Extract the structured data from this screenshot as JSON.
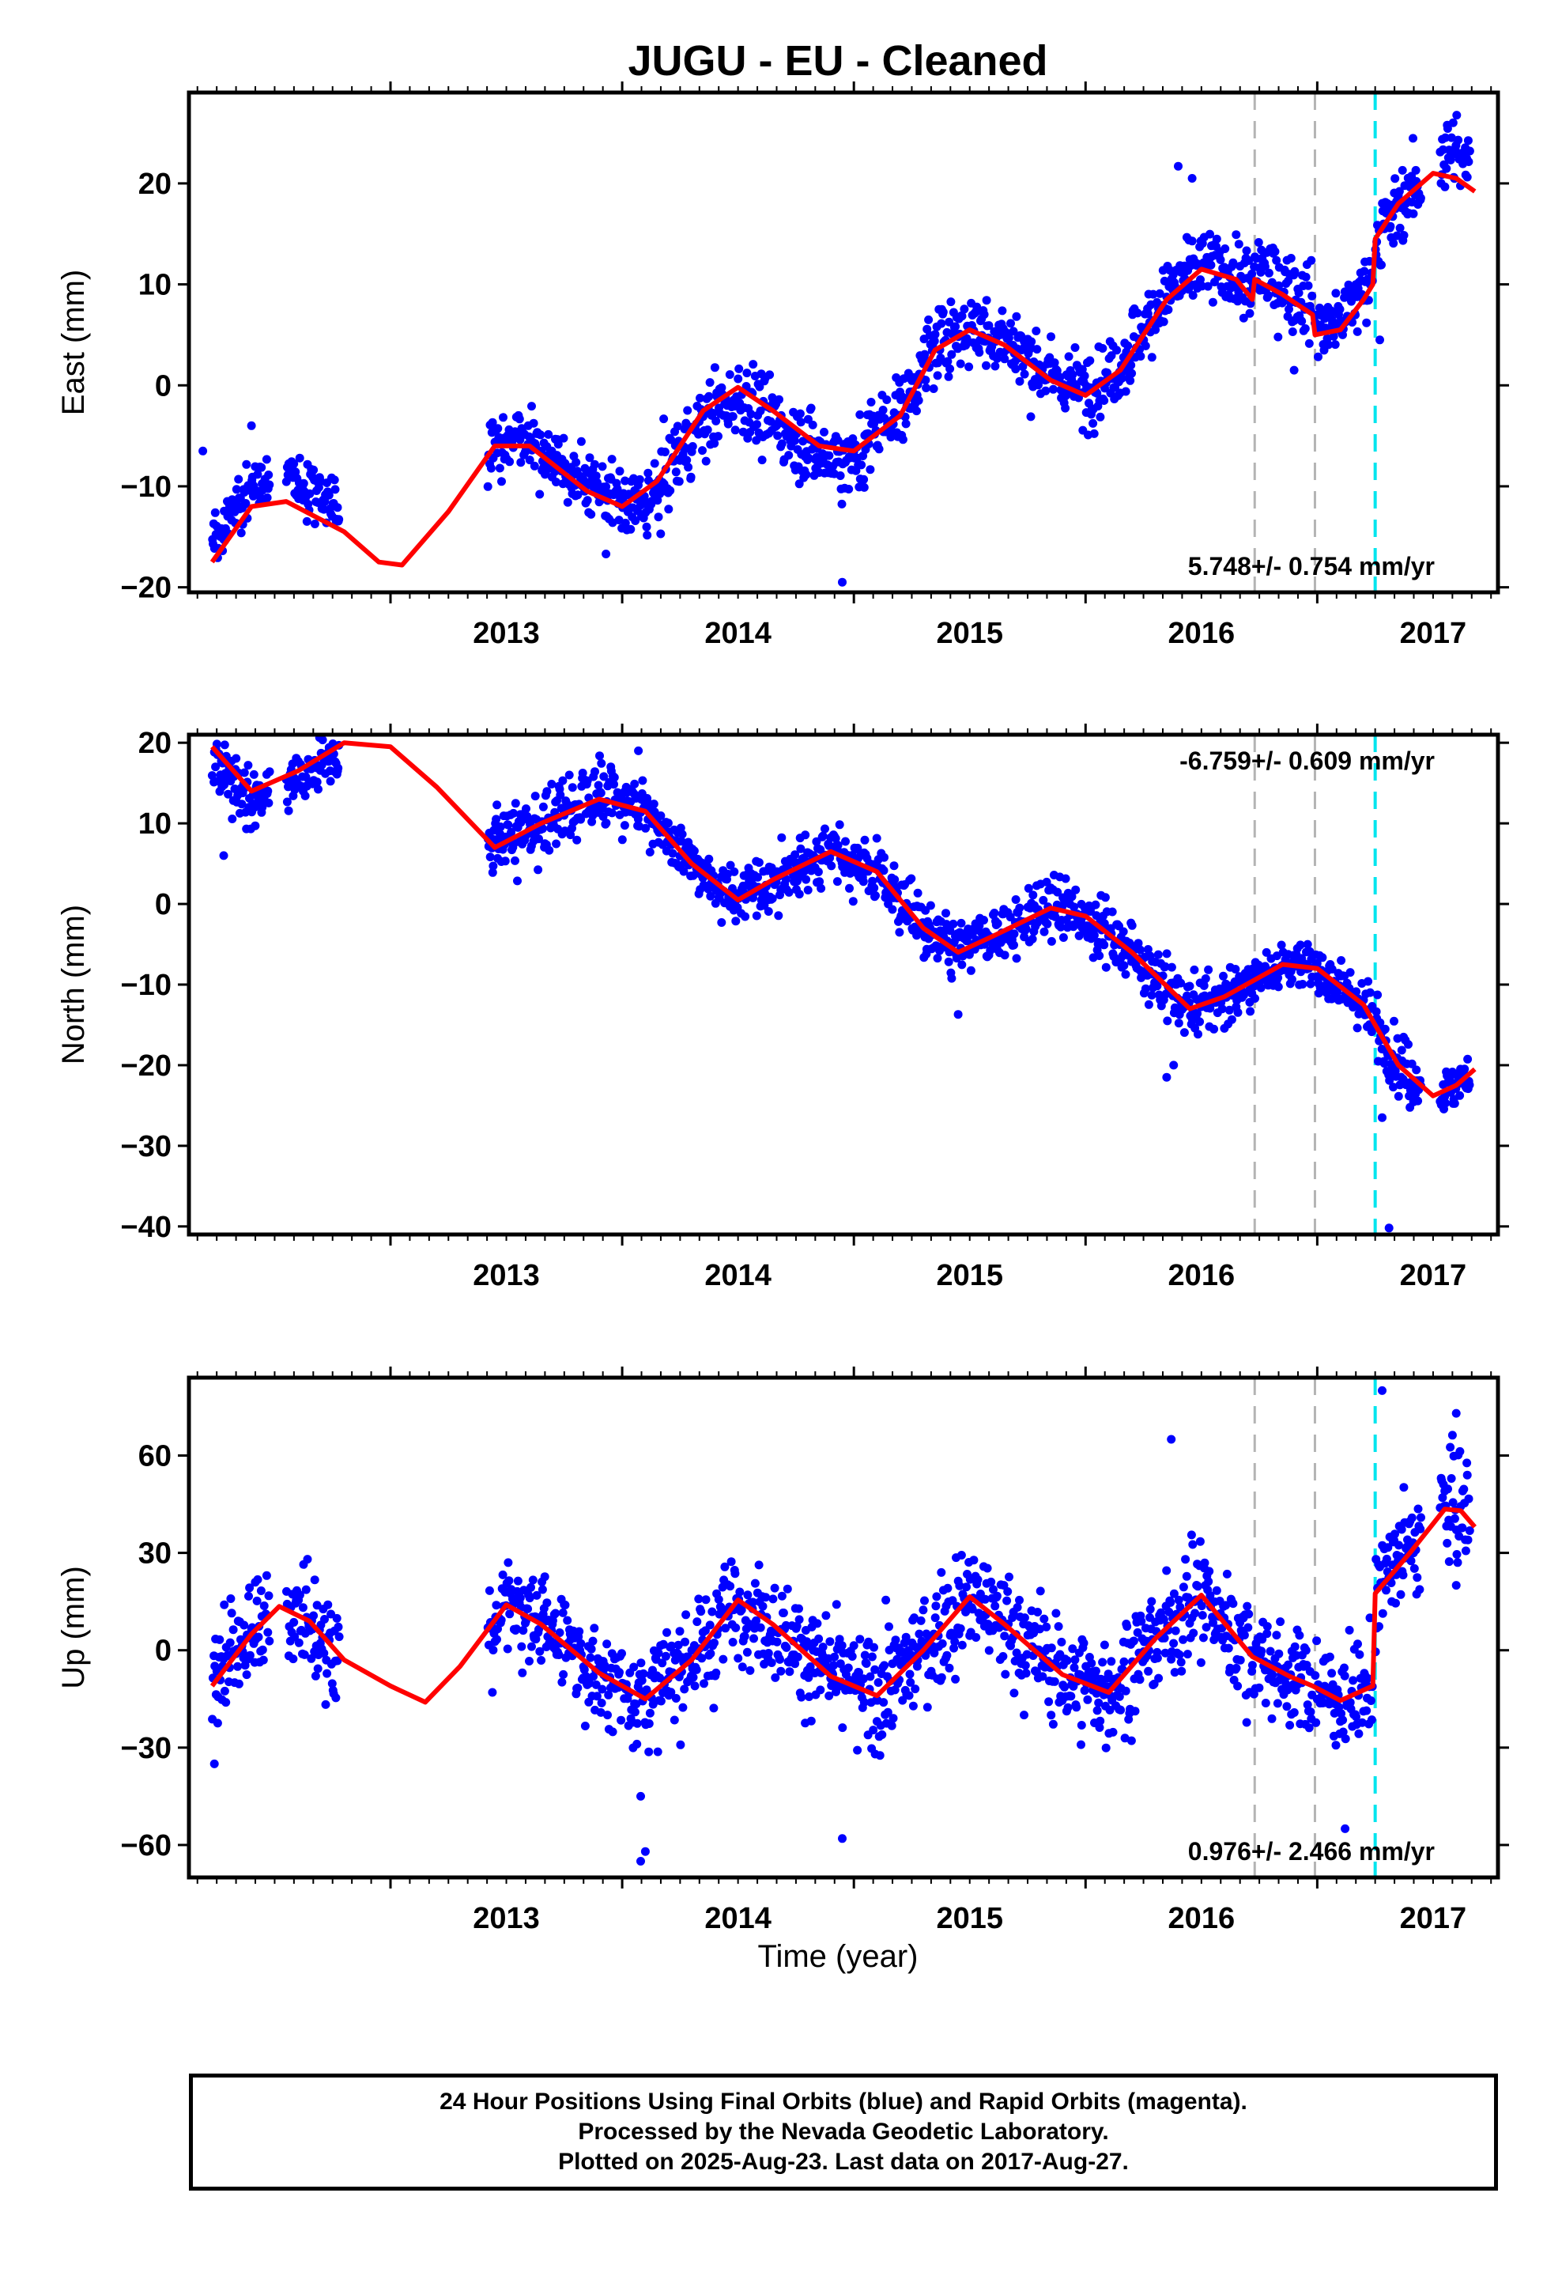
{
  "title": "JUGU  - EU - Cleaned",
  "xlabel": "Time (year)",
  "footer": {
    "line1": "24 Hour Positions Using Final Orbits (blue) and Rapid Orbits (magenta).",
    "line2": "Processed by the Nevada Geodetic Laboratory.",
    "line3": "Plotted on 2025-Aug-23. Last data on 2017-Aug-27."
  },
  "colors": {
    "data": "#0000ff",
    "model": "#ff0000",
    "steps_gray": "#b4b4b4",
    "step_cyan": "#00e5ee",
    "axes": "#000000"
  },
  "chart_data": [
    {
      "type": "scatter",
      "component": "east",
      "ylabel": "East (mm)",
      "xlim": [
        2012.13,
        2017.78
      ],
      "ylim": [
        -20.5,
        29
      ],
      "xticks": [
        2013,
        2014,
        2015,
        2016,
        2017
      ],
      "yticks": [
        -20,
        -10,
        0,
        10,
        20
      ],
      "rate_label": "5.748+/- 0.754 mm/yr",
      "rate_position": "bottom-right",
      "vertical_lines": [
        {
          "x": 2016.73,
          "color": "gray",
          "style": "dashed"
        },
        {
          "x": 2016.99,
          "color": "gray",
          "style": "dashed"
        },
        {
          "x": 2017.25,
          "color": "cyan",
          "style": "dashed"
        }
      ],
      "model_curve": [
        [
          2012.23,
          -17.5
        ],
        [
          2012.4,
          -12.0
        ],
        [
          2012.55,
          -11.5
        ],
        [
          2012.8,
          -14.5
        ],
        [
          2012.95,
          -17.5
        ],
        [
          2013.05,
          -17.8
        ],
        [
          2013.25,
          -12.5
        ],
        [
          2013.45,
          -6.0
        ],
        [
          2013.6,
          -6.0
        ],
        [
          2013.85,
          -10.5
        ],
        [
          2014.0,
          -12.0
        ],
        [
          2014.15,
          -9.5
        ],
        [
          2014.35,
          -2.5
        ],
        [
          2014.5,
          -0.2
        ],
        [
          2014.65,
          -2.5
        ],
        [
          2014.85,
          -6.0
        ],
        [
          2015.0,
          -6.5
        ],
        [
          2015.2,
          -3.0
        ],
        [
          2015.35,
          3.5
        ],
        [
          2015.5,
          5.5
        ],
        [
          2015.65,
          4.0
        ],
        [
          2015.85,
          0.5
        ],
        [
          2016.0,
          -1.0
        ],
        [
          2016.15,
          1.5
        ],
        [
          2016.35,
          8.5
        ],
        [
          2016.5,
          11.5
        ],
        [
          2016.65,
          10.5
        ],
        [
          2016.72,
          8.5
        ],
        [
          2016.73,
          10.5
        ],
        [
          2016.85,
          9.0
        ],
        [
          2016.98,
          7.0
        ],
        [
          2016.99,
          5.0
        ],
        [
          2017.1,
          5.5
        ],
        [
          2017.2,
          8.5
        ],
        [
          2017.24,
          10.0
        ],
        [
          2017.25,
          14.5
        ],
        [
          2017.35,
          18.0
        ],
        [
          2017.5,
          21.0
        ],
        [
          2017.6,
          20.5
        ],
        [
          2017.68,
          19.2
        ]
      ],
      "data_segments": [
        {
          "x_range": [
            2012.23,
            2012.48
          ],
          "offset": 2.0,
          "spread": 1.3
        },
        {
          "x_range": [
            2012.55,
            2012.78
          ],
          "offset": 2.5,
          "spread": 1.3
        },
        {
          "x_range": [
            2013.42,
            2014.02
          ],
          "offset": 0.5,
          "spread": 1.5
        },
        {
          "x_range": [
            2014.02,
            2015.05
          ],
          "offset": -1.0,
          "spread": 1.8
        },
        {
          "x_range": [
            2015.05,
            2016.72
          ],
          "offset": 0.5,
          "spread": 1.8
        },
        {
          "x_range": [
            2016.72,
            2016.98
          ],
          "offset": 1.0,
          "spread": 1.8
        },
        {
          "x_range": [
            2016.99,
            2017.24
          ],
          "offset": 1.0,
          "spread": 1.6
        },
        {
          "x_range": [
            2017.25,
            2017.45
          ],
          "offset": 0.0,
          "spread": 1.8
        },
        {
          "x_range": [
            2017.53,
            2017.66
          ],
          "offset": 2.0,
          "spread": 2.0
        }
      ],
      "outliers": [
        [
          2012.19,
          -6.5
        ],
        [
          2012.4,
          -4.0
        ],
        [
          2013.93,
          -16.7
        ],
        [
          2014.95,
          -19.5
        ],
        [
          2016.4,
          21.7
        ],
        [
          2016.46,
          20.5
        ],
        [
          2016.9,
          1.5
        ],
        [
          2017.27,
          4.5
        ]
      ]
    },
    {
      "type": "scatter",
      "component": "north",
      "ylabel": "North (mm)",
      "xlim": [
        2012.13,
        2017.78
      ],
      "ylim": [
        -41,
        21
      ],
      "xticks": [
        2013,
        2014,
        2015,
        2016,
        2017
      ],
      "yticks": [
        -40,
        -30,
        -20,
        -10,
        0,
        10,
        20
      ],
      "rate_label": "-6.759+/- 0.609 mm/yr",
      "rate_position": "top-right",
      "vertical_lines": [
        {
          "x": 2016.73,
          "color": "gray",
          "style": "dashed"
        },
        {
          "x": 2016.99,
          "color": "gray",
          "style": "dashed"
        },
        {
          "x": 2017.25,
          "color": "cyan",
          "style": "dashed"
        }
      ],
      "model_curve": [
        [
          2012.23,
          19.5
        ],
        [
          2012.4,
          14.0
        ],
        [
          2012.6,
          16.5
        ],
        [
          2012.8,
          20.0
        ],
        [
          2013.0,
          19.5
        ],
        [
          2013.2,
          14.5
        ],
        [
          2013.45,
          7.0
        ],
        [
          2013.65,
          10.0
        ],
        [
          2013.9,
          13.0
        ],
        [
          2014.1,
          11.5
        ],
        [
          2014.3,
          5.0
        ],
        [
          2014.5,
          0.5
        ],
        [
          2014.65,
          3.0
        ],
        [
          2014.9,
          6.5
        ],
        [
          2015.1,
          4.0
        ],
        [
          2015.3,
          -3.0
        ],
        [
          2015.45,
          -6.0
        ],
        [
          2015.6,
          -4.0
        ],
        [
          2015.85,
          -0.5
        ],
        [
          2016.0,
          -1.5
        ],
        [
          2016.2,
          -6.0
        ],
        [
          2016.45,
          -13.0
        ],
        [
          2016.6,
          -11.5
        ],
        [
          2016.85,
          -7.5
        ],
        [
          2017.0,
          -8.0
        ],
        [
          2017.2,
          -12.5
        ],
        [
          2017.35,
          -20.0
        ],
        [
          2017.5,
          -23.8
        ],
        [
          2017.6,
          -22.5
        ],
        [
          2017.68,
          -20.5
        ]
      ],
      "data_segments": [
        {
          "x_range": [
            2012.23,
            2012.48
          ],
          "offset": -1.5,
          "spread": 2.0
        },
        {
          "x_range": [
            2012.55,
            2012.78
          ],
          "offset": -1.0,
          "spread": 1.5
        },
        {
          "x_range": [
            2013.42,
            2014.02
          ],
          "offset": 0.5,
          "spread": 2.0
        },
        {
          "x_range": [
            2014.02,
            2015.05
          ],
          "offset": 0.0,
          "spread": 1.7
        },
        {
          "x_range": [
            2015.05,
            2016.72
          ],
          "offset": 0.0,
          "spread": 1.8
        },
        {
          "x_range": [
            2016.72,
            2016.98
          ],
          "offset": 0.0,
          "spread": 1.3
        },
        {
          "x_range": [
            2016.99,
            2017.24
          ],
          "offset": 0.0,
          "spread": 1.5
        },
        {
          "x_range": [
            2017.25,
            2017.45
          ],
          "offset": 0.0,
          "spread": 1.8
        },
        {
          "x_range": [
            2017.53,
            2017.66
          ],
          "offset": 0.0,
          "spread": 1.5
        }
      ],
      "outliers": [
        [
          2012.28,
          6.0
        ],
        [
          2014.07,
          19.0
        ],
        [
          2015.45,
          -13.7
        ],
        [
          2016.35,
          -21.5
        ],
        [
          2016.38,
          -20.0
        ],
        [
          2017.31,
          -40.2
        ],
        [
          2017.28,
          -26.5
        ]
      ]
    },
    {
      "type": "scatter",
      "component": "up",
      "ylabel": "Up (mm)",
      "xlabel": "Time (year)",
      "xlim": [
        2012.13,
        2017.78
      ],
      "ylim": [
        -70,
        84
      ],
      "xticks": [
        2013,
        2014,
        2015,
        2016,
        2017
      ],
      "yticks": [
        -60,
        -30,
        0,
        30,
        60
      ],
      "rate_label": "0.976+/- 2.466 mm/yr",
      "rate_position": "bottom-right",
      "vertical_lines": [
        {
          "x": 2016.73,
          "color": "gray",
          "style": "dashed"
        },
        {
          "x": 2016.99,
          "color": "gray",
          "style": "dashed"
        },
        {
          "x": 2017.25,
          "color": "cyan",
          "style": "dashed"
        }
      ],
      "model_curve": [
        [
          2012.23,
          -11.0
        ],
        [
          2012.4,
          5.0
        ],
        [
          2012.52,
          13.5
        ],
        [
          2012.65,
          9.0
        ],
        [
          2012.8,
          -3.0
        ],
        [
          2013.0,
          -11.0
        ],
        [
          2013.15,
          -16.0
        ],
        [
          2013.3,
          -5.0
        ],
        [
          2013.5,
          14.0
        ],
        [
          2013.65,
          8.0
        ],
        [
          2013.9,
          -7.0
        ],
        [
          2014.1,
          -15.0
        ],
        [
          2014.3,
          -3.0
        ],
        [
          2014.5,
          15.5
        ],
        [
          2014.65,
          8.0
        ],
        [
          2014.9,
          -8.0
        ],
        [
          2015.1,
          -14.0
        ],
        [
          2015.3,
          0.0
        ],
        [
          2015.5,
          16.5
        ],
        [
          2015.65,
          8.0
        ],
        [
          2015.9,
          -7.5
        ],
        [
          2016.1,
          -13.0
        ],
        [
          2016.3,
          3.5
        ],
        [
          2016.5,
          17.0
        ],
        [
          2016.72,
          -2.0
        ],
        [
          2016.88,
          -8.0
        ],
        [
          2016.98,
          -11.0
        ],
        [
          2017.1,
          -15.5
        ],
        [
          2017.24,
          -11.0
        ],
        [
          2017.25,
          17.5
        ],
        [
          2017.4,
          30.0
        ],
        [
          2017.55,
          43.5
        ],
        [
          2017.62,
          43.0
        ],
        [
          2017.68,
          38.0
        ]
      ],
      "data_segments": [
        {
          "x_range": [
            2012.23,
            2012.48
          ],
          "offset": 0.0,
          "spread": 9.0
        },
        {
          "x_range": [
            2012.55,
            2012.78
          ],
          "offset": 0.0,
          "spread": 8.0
        },
        {
          "x_range": [
            2013.42,
            2014.02
          ],
          "offset": 0.0,
          "spread": 7.0
        },
        {
          "x_range": [
            2014.02,
            2015.05
          ],
          "offset": 0.0,
          "spread": 8.0
        },
        {
          "x_range": [
            2015.05,
            2016.72
          ],
          "offset": 0.0,
          "spread": 8.5
        },
        {
          "x_range": [
            2016.72,
            2016.98
          ],
          "offset": 0.0,
          "spread": 7.0
        },
        {
          "x_range": [
            2016.99,
            2017.24
          ],
          "offset": 0.0,
          "spread": 8.0
        },
        {
          "x_range": [
            2017.25,
            2017.45
          ],
          "offset": 2.0,
          "spread": 9.0
        },
        {
          "x_range": [
            2017.53,
            2017.66
          ],
          "offset": 2.0,
          "spread": 9.0
        }
      ],
      "outliers": [
        [
          2012.24,
          -35.0
        ],
        [
          2014.08,
          -45.0
        ],
        [
          2014.08,
          -65.0
        ],
        [
          2014.1,
          -62.0
        ],
        [
          2014.95,
          -58.0
        ],
        [
          2016.37,
          65.0
        ],
        [
          2017.12,
          -55.0
        ],
        [
          2017.28,
          80.0
        ],
        [
          2017.6,
          73.0
        ],
        [
          2017.6,
          20.0
        ]
      ]
    }
  ]
}
